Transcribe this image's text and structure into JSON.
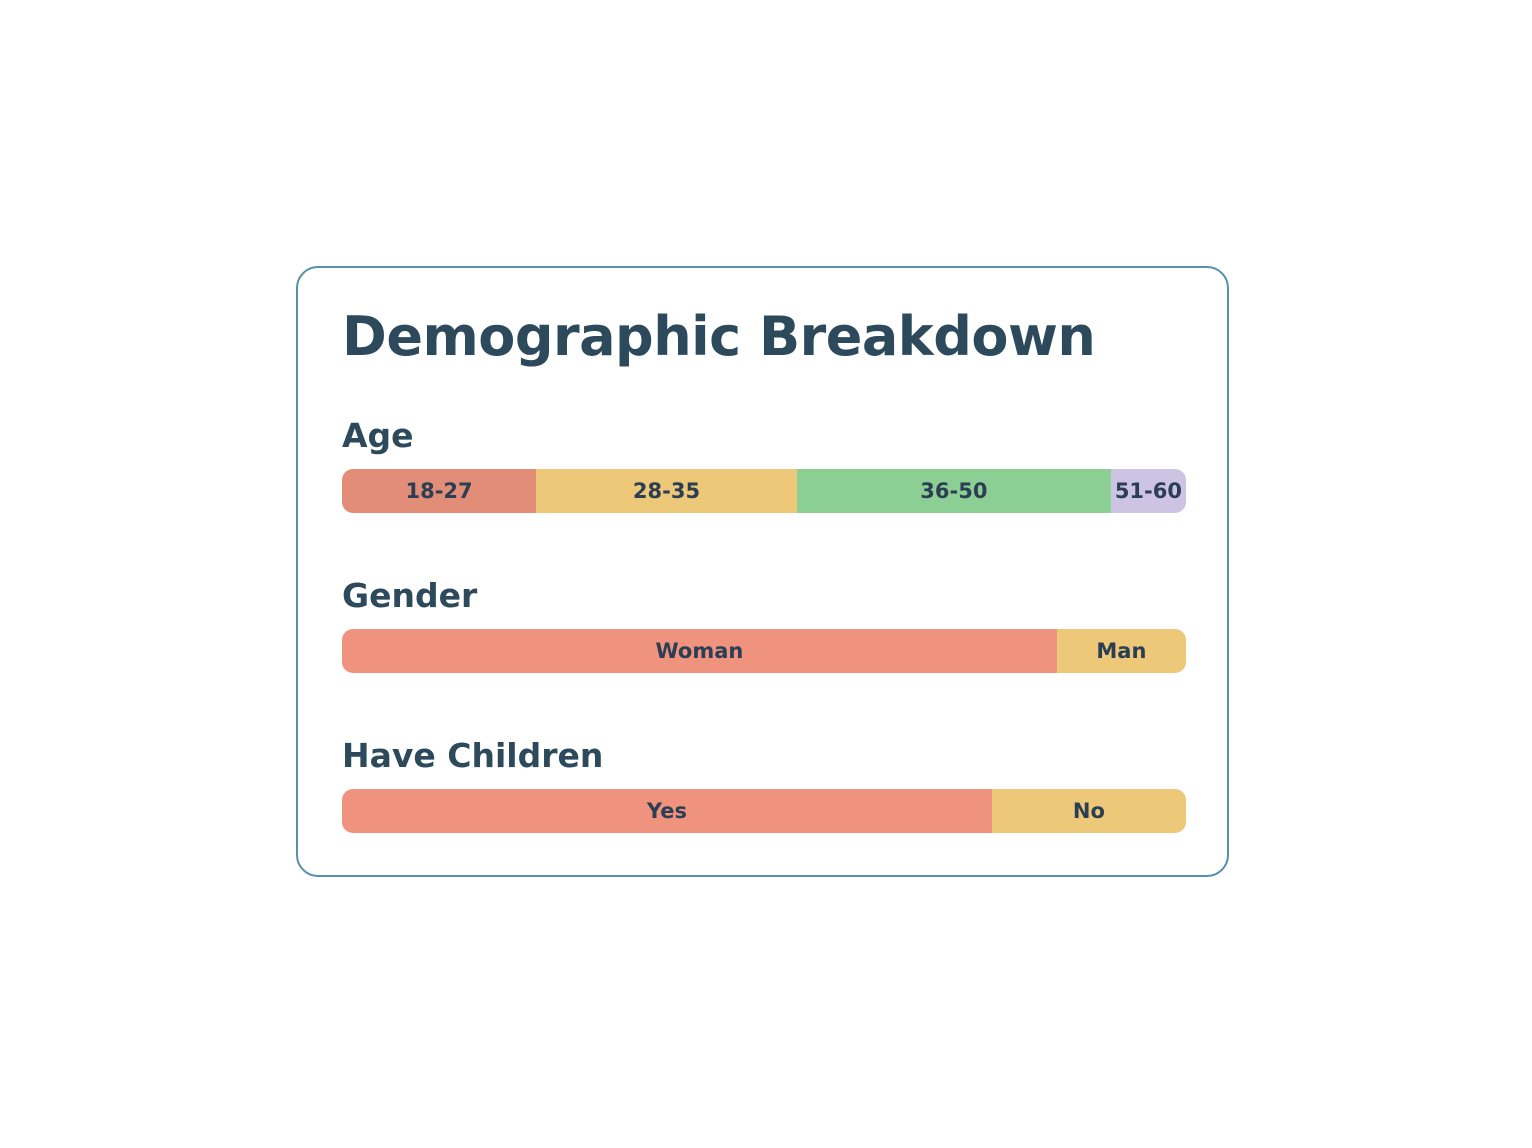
{
  "title": "Demographic Breakdown",
  "accent_colors": {
    "card_border": "#5590AE",
    "heading_text": "#2C4A5B",
    "bar_label_text": "#2B3E53",
    "salmon_dark": "#E18D78",
    "salmon": "#EF937F",
    "yellow": "#ECC878",
    "green": "#8CCF94",
    "lavender": "#CDC4E4"
  },
  "sections": [
    {
      "label": "Age",
      "segments": [
        {
          "label": "18-27",
          "pct": 23.0,
          "color": "#E18D78"
        },
        {
          "label": "28-35",
          "pct": 30.9,
          "color": "#ECC878"
        },
        {
          "label": "36-50",
          "pct": 37.2,
          "color": "#8CCF94"
        },
        {
          "label": "51-60",
          "pct": 8.9,
          "color": "#CDC4E4"
        }
      ]
    },
    {
      "label": "Gender",
      "segments": [
        {
          "label": "Woman",
          "pct": 84.7,
          "color": "#EF937F"
        },
        {
          "label": "Man",
          "pct": 15.3,
          "color": "#ECC878"
        }
      ]
    },
    {
      "label": "Have Children",
      "segments": [
        {
          "label": "Yes",
          "pct": 77.0,
          "color": "#EF937F"
        },
        {
          "label": "No",
          "pct": 23.0,
          "color": "#ECC878"
        }
      ]
    }
  ],
  "chart_data": [
    {
      "type": "bar",
      "subtype": "100pct-stacked-horizontal",
      "title": "Age",
      "categories": [
        "18-27",
        "28-35",
        "36-50",
        "51-60"
      ],
      "values": [
        23.0,
        30.9,
        37.2,
        8.9
      ],
      "unit": "%",
      "colors": [
        "#E18D78",
        "#ECC878",
        "#8CCF94",
        "#CDC4E4"
      ],
      "legend_position": "none",
      "grid": false
    },
    {
      "type": "bar",
      "subtype": "100pct-stacked-horizontal",
      "title": "Gender",
      "categories": [
        "Woman",
        "Man"
      ],
      "values": [
        84.7,
        15.3
      ],
      "unit": "%",
      "colors": [
        "#EF937F",
        "#ECC878"
      ],
      "legend_position": "none",
      "grid": false
    },
    {
      "type": "bar",
      "subtype": "100pct-stacked-horizontal",
      "title": "Have Children",
      "categories": [
        "Yes",
        "No"
      ],
      "values": [
        77.0,
        23.0
      ],
      "unit": "%",
      "colors": [
        "#EF937F",
        "#ECC878"
      ],
      "legend_position": "none",
      "grid": false
    }
  ]
}
